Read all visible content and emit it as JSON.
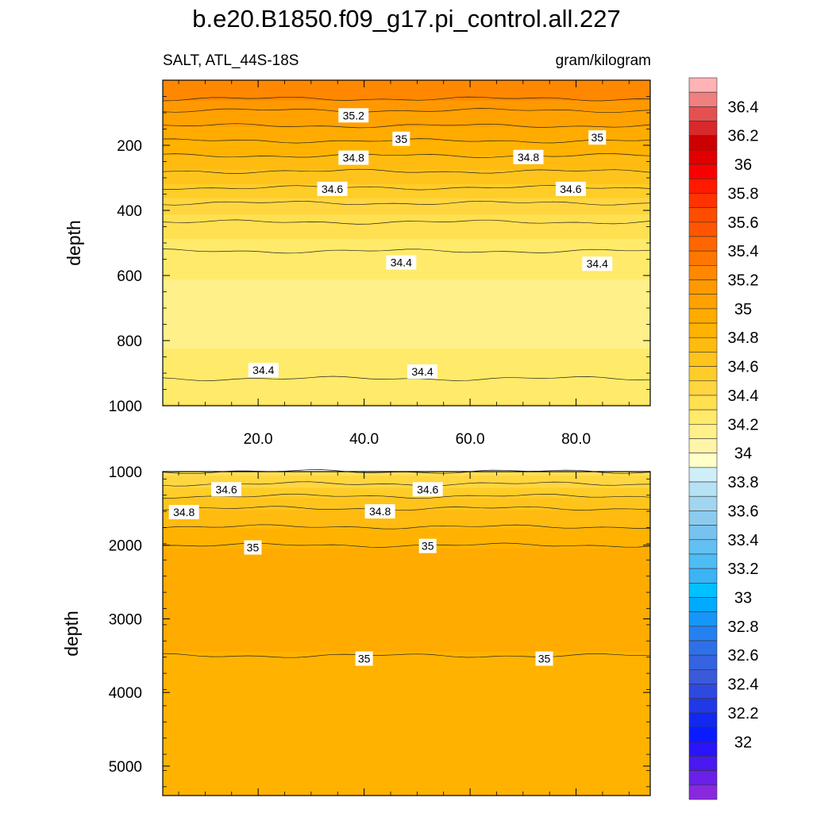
{
  "title": "b.e20.B1850.f09_g17.pi_control.all.227",
  "left_string": "SALT, ATL_44S-18S",
  "right_string": "gram/kilogram",
  "chart_data": [
    {
      "type": "heatmap",
      "name": "upper panel",
      "x_range": [
        2,
        94
      ],
      "y_range": [
        0,
        1000
      ],
      "y_reversed": true,
      "xlabel": "",
      "ylabel": "depth",
      "x_ticks": [
        20,
        40,
        60,
        80
      ],
      "x_tick_labels": [
        "20.0",
        "40.0",
        "60.0",
        "80.0"
      ],
      "y_ticks": [
        200,
        400,
        600,
        800,
        1000
      ],
      "y_tick_labels": [
        "200",
        "400",
        "600",
        "800",
        "1000"
      ],
      "depth_levels": [
        0,
        50,
        100,
        150,
        200,
        250,
        300,
        350,
        400,
        450,
        500,
        550,
        600,
        650,
        700,
        750,
        800,
        850,
        900,
        950,
        1000
      ],
      "salinity_profile": [
        35.35,
        35.32,
        35.18,
        35.08,
        34.97,
        34.86,
        34.76,
        34.66,
        34.55,
        34.48,
        34.42,
        34.38,
        34.35,
        34.33,
        34.32,
        34.32,
        34.33,
        34.36,
        34.39,
        34.42,
        34.44
      ],
      "contour_labels": [
        {
          "text": "35.2",
          "x": 38,
          "y": 108
        },
        {
          "text": "35",
          "x": 47,
          "y": 180
        },
        {
          "text": "35",
          "x": 84,
          "y": 176
        },
        {
          "text": "34.8",
          "x": 38,
          "y": 238
        },
        {
          "text": "34.8",
          "x": 71,
          "y": 236
        },
        {
          "text": "34.6",
          "x": 34,
          "y": 334
        },
        {
          "text": "34.6",
          "x": 79,
          "y": 334
        },
        {
          "text": "34.4",
          "x": 47,
          "y": 560
        },
        {
          "text": "34.4",
          "x": 84,
          "y": 564
        },
        {
          "text": "34.4",
          "x": 21,
          "y": 890
        },
        {
          "text": "34.4",
          "x": 51,
          "y": 895
        }
      ]
    },
    {
      "type": "heatmap",
      "name": "lower panel",
      "x_range": [
        2,
        94
      ],
      "y_range": [
        1000,
        5400
      ],
      "y_reversed": true,
      "xlabel": "",
      "ylabel": "depth",
      "y_ticks": [
        1000,
        2000,
        3000,
        4000,
        5000
      ],
      "y_tick_labels": [
        "1000",
        "2000",
        "3000",
        "4000",
        "5000"
      ],
      "depth_levels": [
        1000,
        1500,
        2000,
        2500,
        3000,
        3500,
        4000,
        4500,
        5000,
        5400
      ],
      "salinity_profile": [
        34.5,
        34.8,
        35.0,
        35.02,
        35.02,
        35.0,
        34.97,
        34.93,
        34.92,
        34.92
      ],
      "contour_labels": [
        {
          "text": "34.6",
          "x": 14,
          "y": 1240
        },
        {
          "text": "34.6",
          "x": 52,
          "y": 1240
        },
        {
          "text": "34.8",
          "x": 6,
          "y": 1550
        },
        {
          "text": "34.8",
          "x": 43,
          "y": 1540
        },
        {
          "text": "35",
          "x": 19,
          "y": 2030
        },
        {
          "text": "35",
          "x": 52,
          "y": 2010
        },
        {
          "text": "35",
          "x": 40,
          "y": 3540
        },
        {
          "text": "35",
          "x": 74,
          "y": 3540
        }
      ]
    }
  ],
  "colorbar": {
    "labels": [
      "36.4",
      "36.2",
      "36",
      "35.8",
      "35.6",
      "35.4",
      "35.2",
      "35",
      "34.8",
      "34.6",
      "34.4",
      "34.2",
      "34",
      "33.8",
      "33.6",
      "33.4",
      "33.2",
      "33",
      "32.8",
      "32.6",
      "32.4",
      "32.2",
      "32"
    ],
    "levels_min": 31.9,
    "levels_max": 36.6,
    "colors_top_to_bottom": [
      "#ffb3b5",
      "#f08080",
      "#e45050",
      "#d82a2a",
      "#cc0000",
      "#e00000",
      "#f80000",
      "#ff1a00",
      "#ff3300",
      "#ff4d00",
      "#ff5500",
      "#ff6600",
      "#ff7700",
      "#ff8800",
      "#ff9900",
      "#ffa200",
      "#ffab00",
      "#ffb300",
      "#ffbb10",
      "#ffc41c",
      "#ffcd28",
      "#ffd640",
      "#ffe050",
      "#ffea6a",
      "#fff08a",
      "#fff5a8",
      "#ffffc8",
      "#cfeef8",
      "#b6e2f4",
      "#a0d6f0",
      "#8ccbee",
      "#78c2f0",
      "#62c0f2",
      "#4ebdf4",
      "#3ab4f6",
      "#00c0ff",
      "#00aaff",
      "#1696f8",
      "#2680f0",
      "#2f70e8",
      "#3564e0",
      "#3b5ad8",
      "#2f48e0",
      "#2038e8",
      "#1028f0",
      "#0a1cff",
      "#2a14f8",
      "#4a18f0",
      "#6a20e8",
      "#8a28e0"
    ]
  }
}
